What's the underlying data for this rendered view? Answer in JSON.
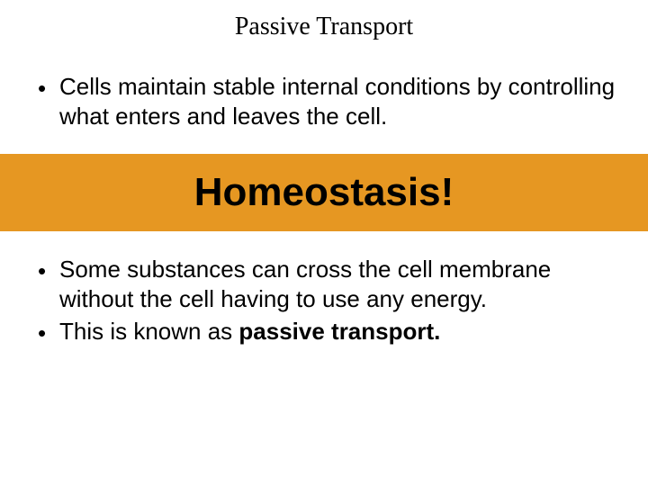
{
  "title": "Passive Transport",
  "bullets_top": [
    "Cells maintain stable internal conditions by controlling what enters and leaves the cell."
  ],
  "banner": {
    "text": "Homeostasis!",
    "background_color": "#e69722",
    "text_color": "#000000",
    "fontsize": 44,
    "fontweight": "bold"
  },
  "bullets_bottom": [
    {
      "pre": "Some substances can cross the cell membrane without the cell having to use any energy.",
      "bold": ""
    },
    {
      "pre": "This is known as ",
      "bold": "passive transport."
    }
  ],
  "styling": {
    "slide_background": "#ffffff",
    "body_font": "Arial",
    "title_font": "Garamond",
    "title_fontsize": 28,
    "bullet_fontsize": 26,
    "text_color": "#000000",
    "bullet_char": "•"
  }
}
